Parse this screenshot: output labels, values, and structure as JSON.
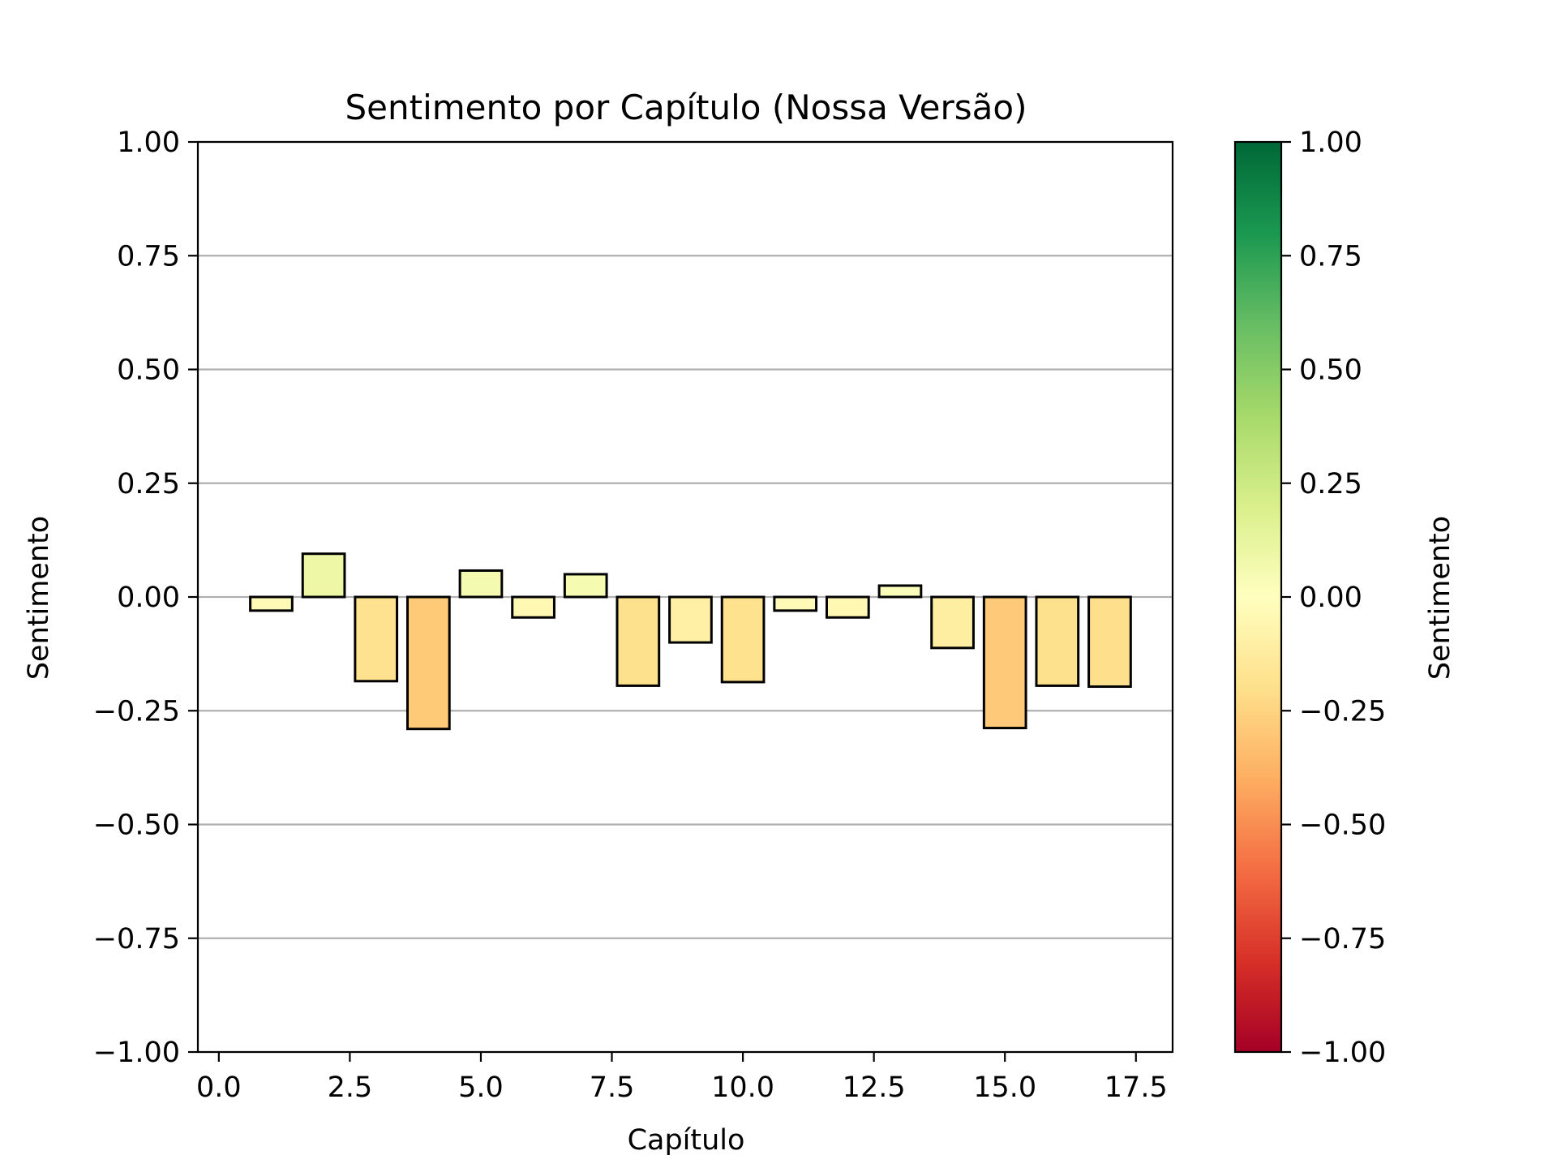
{
  "chart_data": {
    "type": "bar",
    "title": "Sentimento por Capítulo (Nossa Versão)",
    "xlabel": "Capítulo",
    "ylabel": "Sentimento",
    "xlim": [
      -0.4,
      18.2
    ],
    "ylim": [
      -1.0,
      1.0
    ],
    "x": [
      1,
      2,
      3,
      4,
      5,
      6,
      7,
      8,
      9,
      10,
      11,
      12,
      13,
      14,
      15,
      16,
      17
    ],
    "values": [
      -0.03,
      0.095,
      -0.185,
      -0.29,
      0.058,
      -0.045,
      0.05,
      -0.195,
      -0.1,
      -0.187,
      -0.03,
      -0.045,
      0.025,
      -0.112,
      -0.288,
      -0.195,
      -0.197
    ],
    "bar_width": 0.8,
    "x_ticks": [
      {
        "value": 0.0,
        "label": "0.0"
      },
      {
        "value": 2.5,
        "label": "2.5"
      },
      {
        "value": 5.0,
        "label": "5.0"
      },
      {
        "value": 7.5,
        "label": "7.5"
      },
      {
        "value": 10.0,
        "label": "10.0"
      },
      {
        "value": 12.5,
        "label": "12.5"
      },
      {
        "value": 15.0,
        "label": "15.0"
      },
      {
        "value": 17.5,
        "label": "17.5"
      }
    ],
    "y_ticks": [
      {
        "value": 1.0,
        "label": "1.00"
      },
      {
        "value": 0.75,
        "label": "0.75"
      },
      {
        "value": 0.5,
        "label": "0.50"
      },
      {
        "value": 0.25,
        "label": "0.25"
      },
      {
        "value": 0.0,
        "label": "0.00"
      },
      {
        "value": -0.25,
        "label": "−0.25"
      },
      {
        "value": -0.5,
        "label": "−0.50"
      },
      {
        "value": -0.75,
        "label": "−0.75"
      },
      {
        "value": -1.0,
        "label": "−1.00"
      }
    ],
    "grid": "y",
    "colormap": "RdYlGn",
    "colorbar": {
      "label": "Sentimento",
      "range": [
        -1.0,
        1.0
      ],
      "stops": [
        "#a50026",
        "#d73027",
        "#f46d43",
        "#fdae61",
        "#fee08b",
        "#ffffbf",
        "#d9ef8b",
        "#a6d96a",
        "#66bd63",
        "#1a9850",
        "#006837"
      ]
    },
    "bar_edge_color": "#000000",
    "grid_color": "#b0b0b0"
  }
}
